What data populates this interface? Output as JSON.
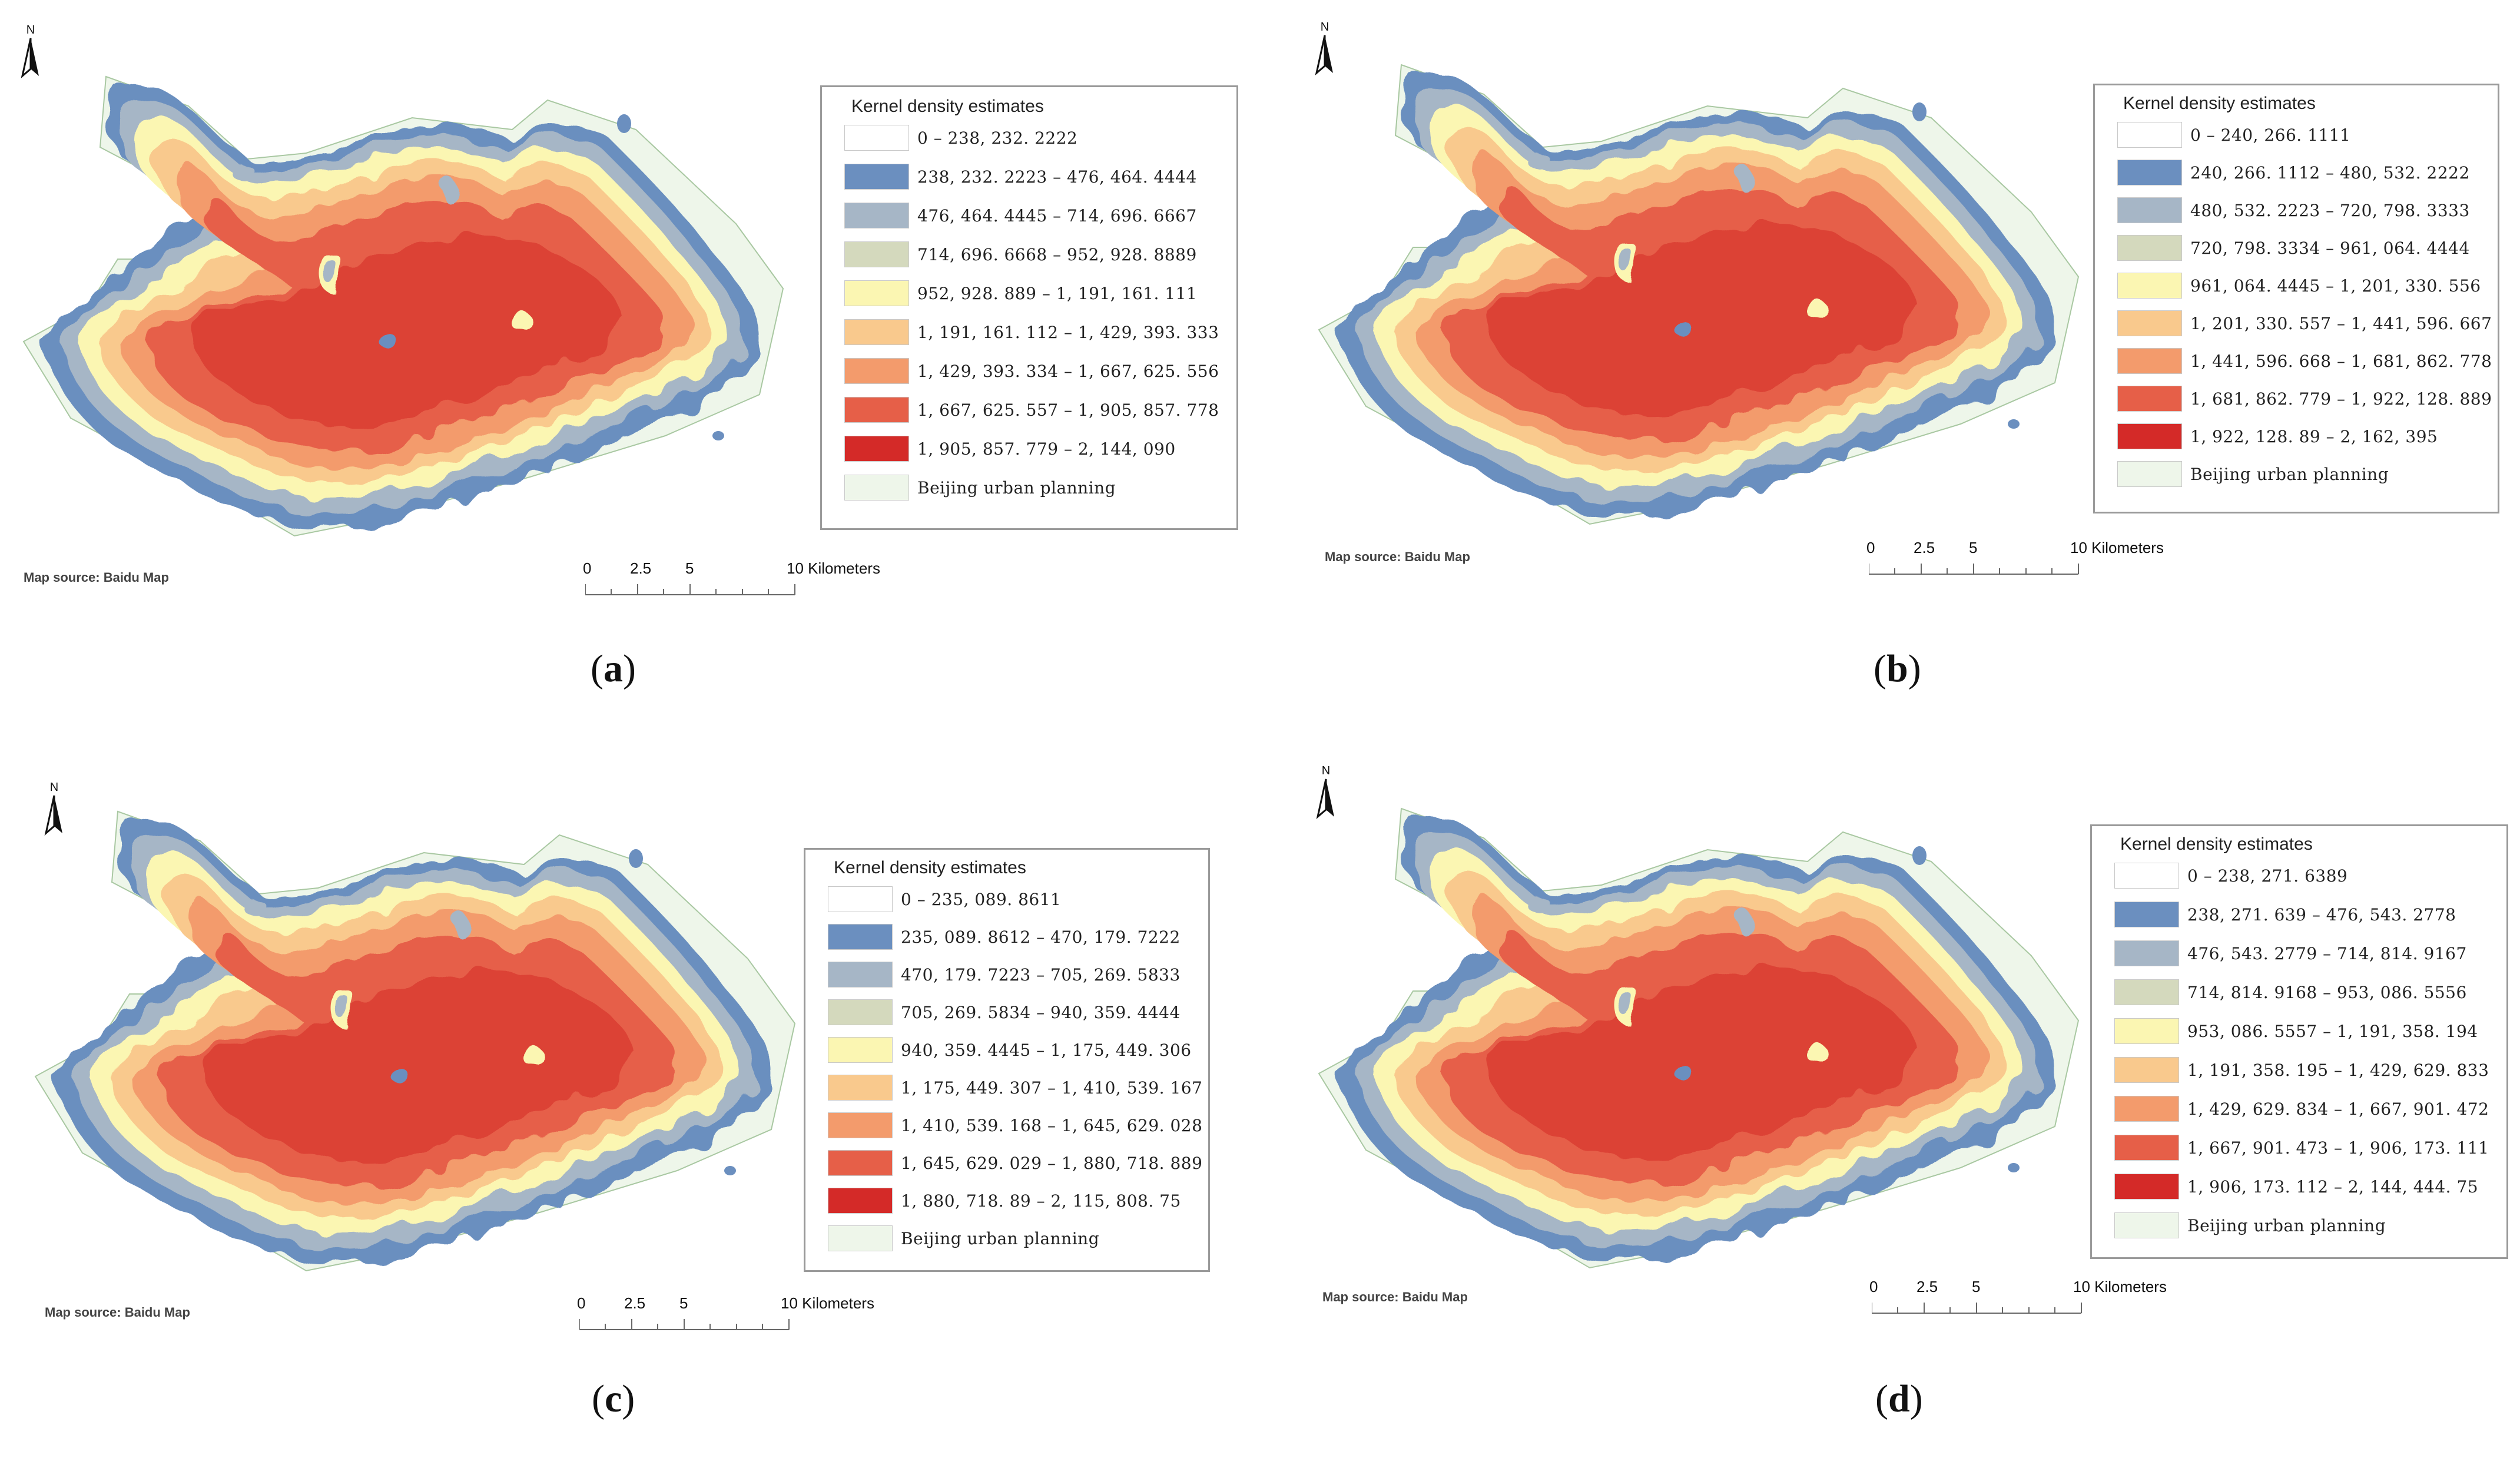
{
  "colors": {
    "class1": "#ffffff",
    "class2": "#6b8fbf",
    "class3": "#a6b6c6",
    "class4": "#d4d9bd",
    "class5": "#fbf6b2",
    "class6": "#f9c98d",
    "class7": "#f39b6c",
    "class8": "#e65f48",
    "class9": "#d42a28",
    "planning": "#eef6ea"
  },
  "panels": [
    {
      "caption_letter": "a",
      "north_label": "N",
      "legend": {
        "title": "Kernel density estimates",
        "items": [
          "0 – 238, 232. 2222",
          "238, 232. 2223 – 476, 464. 4444",
          "476, 464. 4445 – 714, 696. 6667",
          "714, 696. 6668 – 952, 928. 8889",
          "952, 928. 889 – 1, 191, 161. 111",
          "1, 191, 161. 112 – 1, 429, 393. 333",
          "1, 429, 393. 334 – 1, 667, 625. 556",
          "1, 667, 625. 557 – 1, 905, 857. 778",
          "1, 905, 857. 779 – 2, 144, 090"
        ],
        "planning_label": "Beijing urban planning"
      },
      "source": "Map source: Baidu Map",
      "scale": {
        "l0": "0",
        "l1": "2.5",
        "l2": "5",
        "l3": "10 Kilometers"
      }
    },
    {
      "caption_letter": "b",
      "north_label": "N",
      "legend": {
        "title": "Kernel density estimates",
        "items": [
          "0 – 240, 266. 1111",
          "240, 266. 1112 – 480, 532. 2222",
          "480, 532. 2223 – 720, 798. 3333",
          "720, 798. 3334 – 961, 064. 4444",
          "961, 064. 4445 – 1, 201, 330. 556",
          "1, 201, 330. 557 – 1, 441, 596. 667",
          "1, 441, 596. 668 – 1, 681, 862. 778",
          "1, 681, 862. 779 – 1, 922, 128. 889",
          "1, 922, 128. 89 – 2, 162, 395"
        ],
        "planning_label": "Beijing urban planning"
      },
      "source": "Map source: Baidu Map",
      "scale": {
        "l0": "0",
        "l1": "2.5",
        "l2": "5",
        "l3": "10 Kilometers"
      }
    },
    {
      "caption_letter": "c",
      "north_label": "N",
      "legend": {
        "title": "Kernel density estimates",
        "items": [
          "0 – 235, 089. 8611",
          "235, 089. 8612 – 470, 179. 7222",
          "470, 179. 7223 – 705, 269. 5833",
          "705, 269. 5834 – 940, 359. 4444",
          "940, 359. 4445 – 1, 175, 449. 306",
          "1, 175, 449. 307 – 1, 410, 539. 167",
          "1, 410, 539. 168 – 1, 645, 629. 028",
          "1, 645, 629. 029 – 1, 880, 718. 889",
          "1, 880, 718. 89 – 2, 115, 808. 75"
        ],
        "planning_label": "Beijing urban planning"
      },
      "source": "Map source: Baidu Map",
      "scale": {
        "l0": "0",
        "l1": "2.5",
        "l2": "5",
        "l3": "10 Kilometers"
      }
    },
    {
      "caption_letter": "d",
      "north_label": "N",
      "legend": {
        "title": "Kernel density estimates",
        "items": [
          "0 – 238, 271. 6389",
          "238, 271. 639 – 476, 543. 2778",
          "476, 543. 2779 – 714, 814. 9167",
          "714, 814. 9168 – 953, 086. 5556",
          "953, 086. 5557 – 1, 191, 358. 194",
          "1, 191, 358. 195 – 1, 429, 629. 833",
          "1, 429, 629. 834 – 1, 667, 901. 472",
          "1, 667, 901. 473 – 1, 906, 173. 111",
          "1, 906, 173. 112 – 2, 144, 444. 75"
        ],
        "planning_label": "Beijing urban planning"
      },
      "source": "Map source: Baidu Map",
      "scale": {
        "l0": "0",
        "l1": "2.5",
        "l2": "5",
        "l3": "10 Kilometers"
      }
    }
  ]
}
